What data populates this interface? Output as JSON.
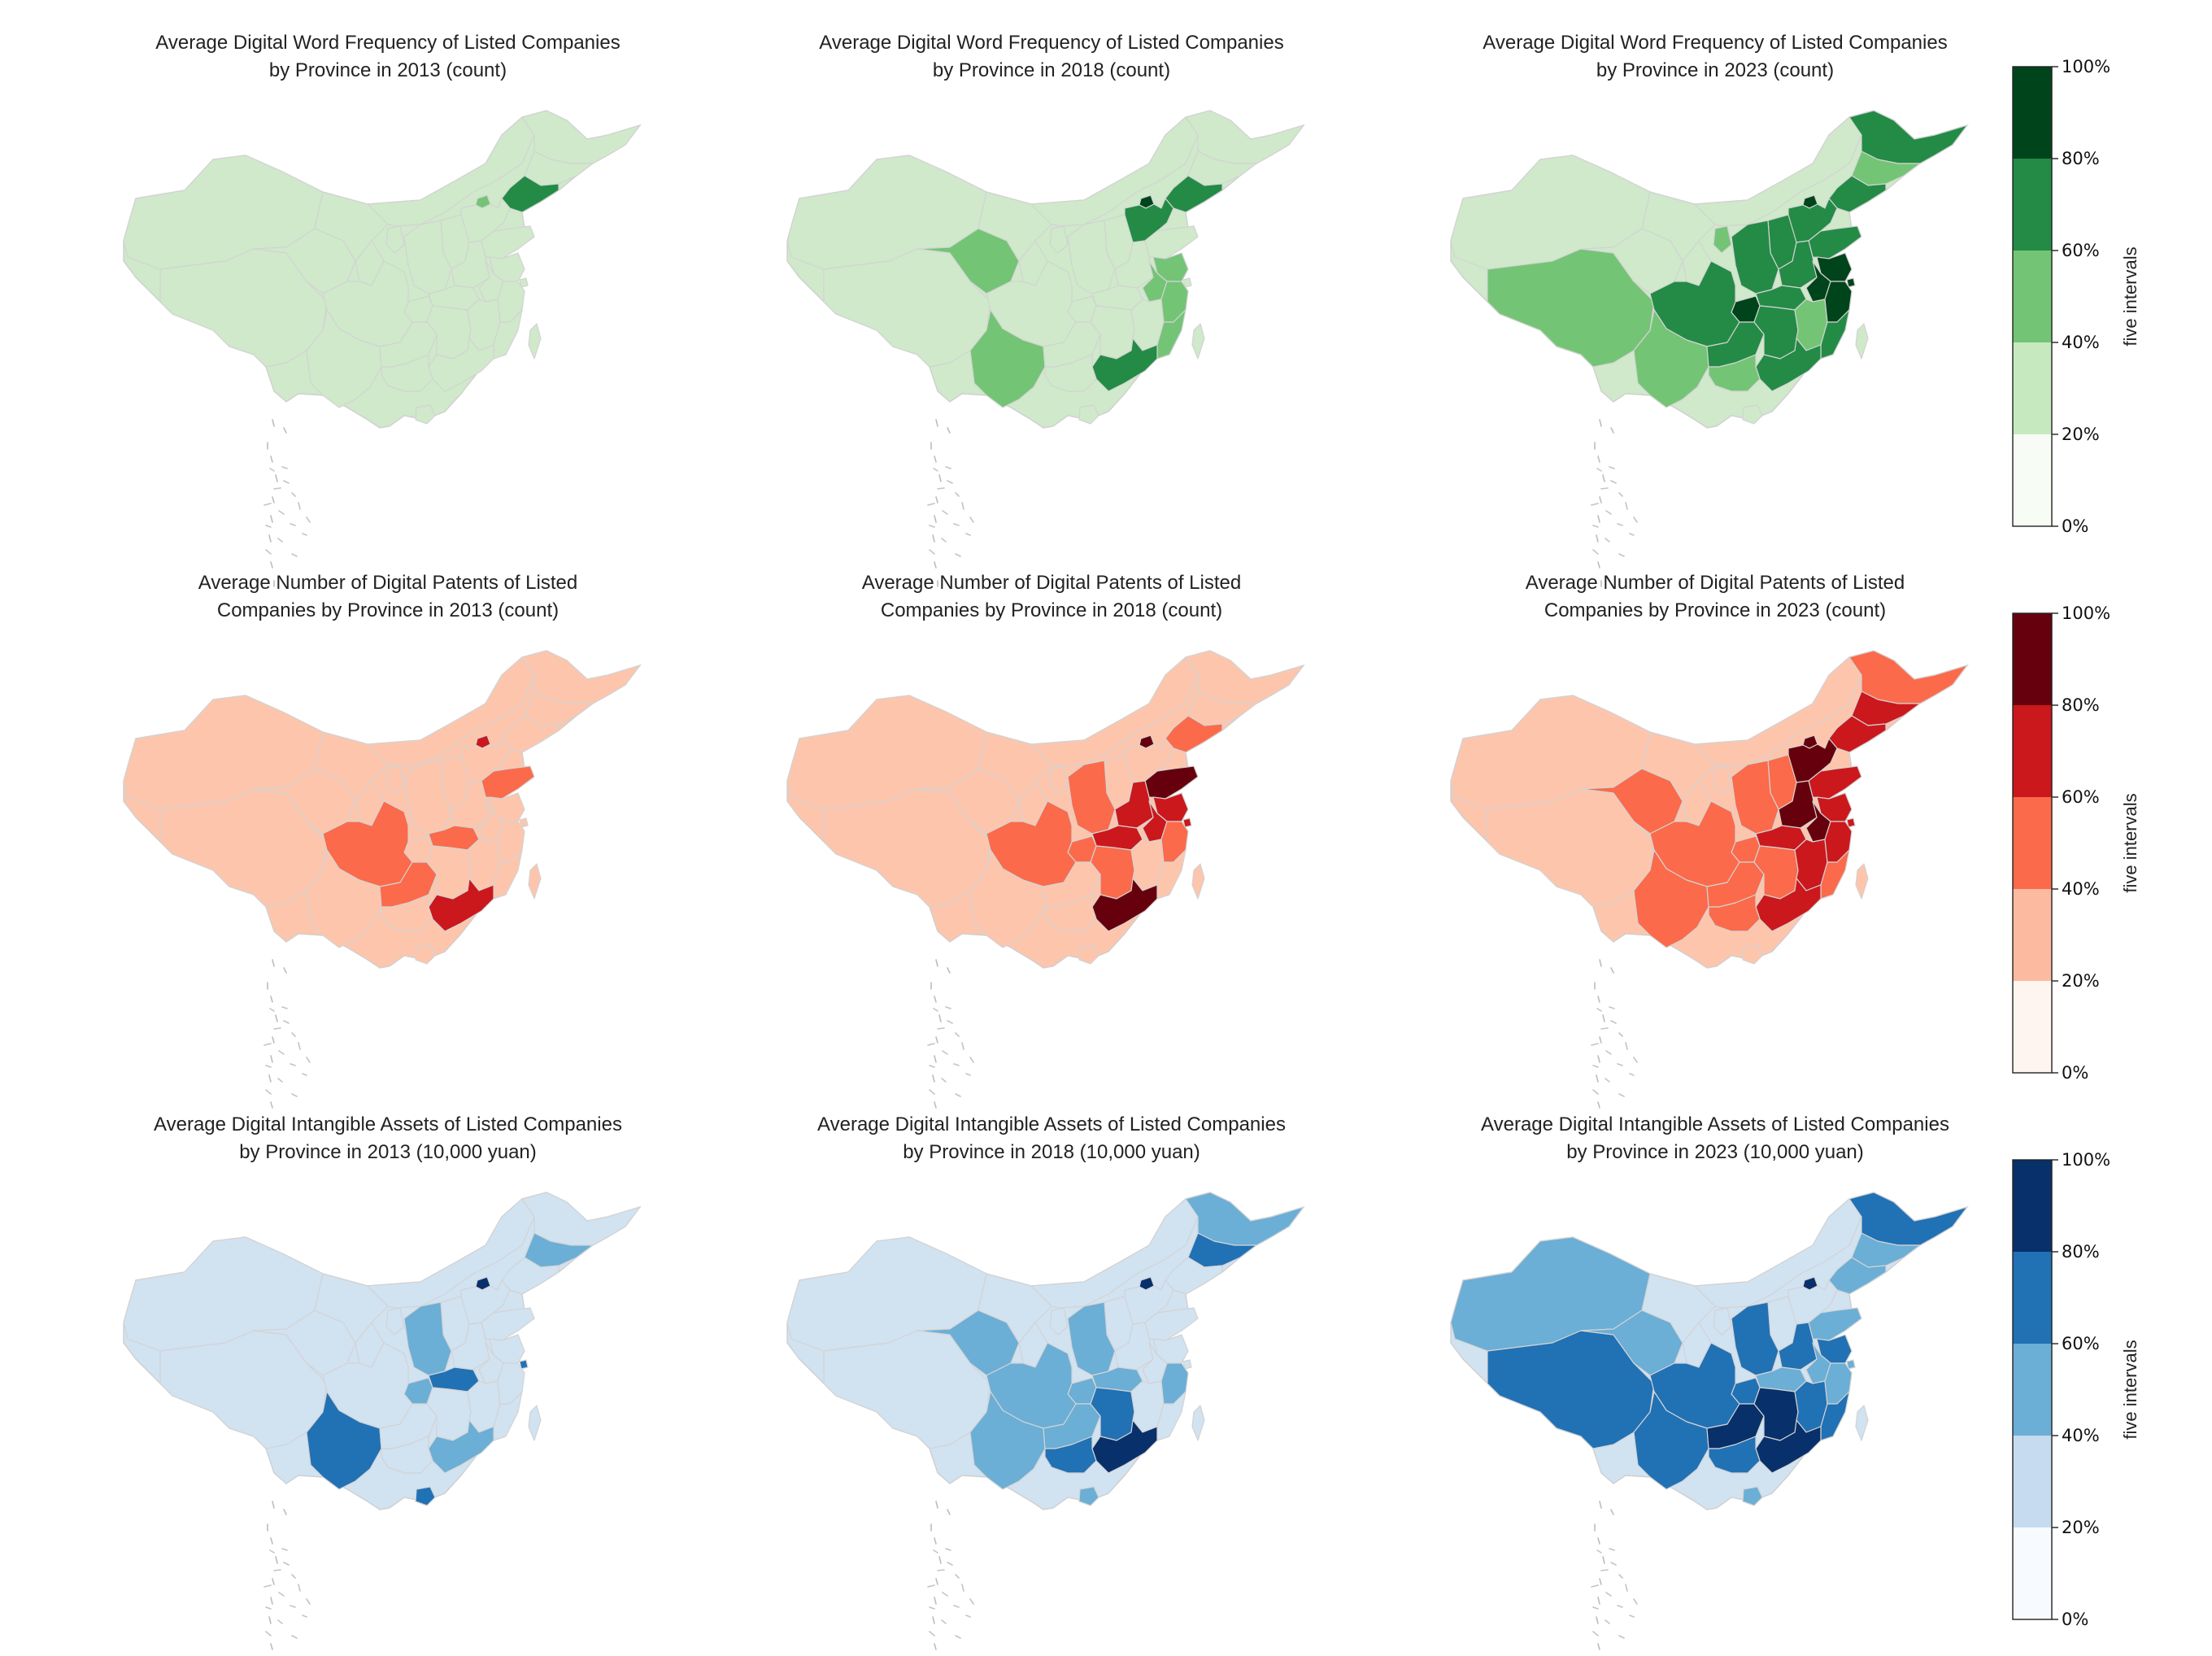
{
  "rows": [
    {
      "id": "word-frequency",
      "palette": [
        "#f7fcf5",
        "#c7e9c0",
        "#74c476",
        "#238b45",
        "#00441b"
      ],
      "base_fill": "#cfe9ca",
      "panels": [
        {
          "title": "Average Digital Word Frequency of Listed Companies\nby Province in 2013 (count)",
          "regions": {
            "xinjiang": 1,
            "tibet": 1,
            "qinghai": 1,
            "gansu": 1,
            "inner_mongolia": 1,
            "heilongjiang": 1,
            "jilin": 1,
            "liaoning": 3,
            "beijing": 2,
            "tianjin": 1,
            "hebei": 1,
            "shanxi": 1,
            "shaanxi": 1,
            "ningxia": 1,
            "shandong": 1,
            "henan": 1,
            "jiangsu": 1,
            "shanghai": 1,
            "anhui": 1,
            "hubei": 1,
            "sichuan": 1,
            "chongqing": 1,
            "yunnan": 1,
            "guizhou": 1,
            "hunan": 1,
            "jiangxi": 1,
            "zhejiang": 1,
            "fujian": 1,
            "guangdong": 1,
            "guangxi": 1,
            "hainan": 1,
            "taiwan": 1
          }
        },
        {
          "title": "Average Digital Word Frequency of Listed Companies\nby Province in 2018 (count)",
          "regions": {
            "xinjiang": 1,
            "tibet": 1,
            "qinghai": 2,
            "gansu": 1,
            "inner_mongolia": 1,
            "heilongjiang": 1,
            "jilin": 1,
            "liaoning": 3,
            "beijing": 4,
            "tianjin": 1,
            "hebei": 3,
            "shanxi": 1,
            "shaanxi": 1,
            "ningxia": 1,
            "shandong": 1,
            "henan": 1,
            "jiangsu": 2,
            "shanghai": 1,
            "anhui": 2,
            "hubei": 1,
            "sichuan": 1,
            "chongqing": 1,
            "yunnan": 2,
            "guizhou": 1,
            "hunan": 1,
            "jiangxi": 1,
            "zhejiang": 2,
            "fujian": 2,
            "guangdong": 3,
            "guangxi": 1,
            "hainan": 1,
            "taiwan": 1
          }
        },
        {
          "title": "Average Digital Word Frequency of Listed Companies\nby Province in 2023 (count)",
          "regions": {
            "xinjiang": 1,
            "tibet": 2,
            "qinghai": 1,
            "gansu": 1,
            "inner_mongolia": 1,
            "heilongjiang": 3,
            "jilin": 2,
            "liaoning": 3,
            "beijing": 4,
            "tianjin": 3,
            "hebei": 3,
            "shanxi": 3,
            "shaanxi": 3,
            "ningxia": 2,
            "shandong": 3,
            "henan": 3,
            "jiangsu": 4,
            "shanghai": 4,
            "anhui": 4,
            "hubei": 3,
            "sichuan": 3,
            "chongqing": 4,
            "yunnan": 2,
            "guizhou": 3,
            "hunan": 3,
            "jiangxi": 2,
            "zhejiang": 4,
            "fujian": 3,
            "guangdong": 3,
            "guangxi": 2,
            "hainan": 1,
            "taiwan": 1
          }
        }
      ],
      "colorbar": {
        "ticks": [
          "0%",
          "20%",
          "40%",
          "60%",
          "80%",
          "100%"
        ],
        "label": "five intervals"
      }
    },
    {
      "id": "digital-patents",
      "palette": [
        "#fff5f0",
        "#fcbba1",
        "#fb6a4a",
        "#cb181d",
        "#67000d"
      ],
      "base_fill": "#fdc5ac",
      "panels": [
        {
          "title": "Average Number of Digital Patents of Listed\nCompanies by Province in 2013 (count)",
          "regions": {
            "xinjiang": 1,
            "tibet": 1,
            "qinghai": 1,
            "gansu": 1,
            "inner_mongolia": 1,
            "heilongjiang": 1,
            "jilin": 1,
            "liaoning": 1,
            "beijing": 3,
            "tianjin": 1,
            "hebei": 1,
            "shanxi": 1,
            "shaanxi": 1,
            "ningxia": 1,
            "shandong": 2,
            "henan": 1,
            "jiangsu": 1,
            "shanghai": 1,
            "anhui": 1,
            "hubei": 2,
            "sichuan": 2,
            "chongqing": 1,
            "yunnan": 1,
            "guizhou": 2,
            "hunan": 1,
            "jiangxi": 1,
            "zhejiang": 1,
            "fujian": 1,
            "guangdong": 3,
            "guangxi": 1,
            "hainan": 1,
            "taiwan": 1
          }
        },
        {
          "title": "Average Number of Digital Patents of Listed\nCompanies by Province in 2018 (count)",
          "regions": {
            "xinjiang": 1,
            "tibet": 1,
            "qinghai": 1,
            "gansu": 1,
            "inner_mongolia": 1,
            "heilongjiang": 1,
            "jilin": 1,
            "liaoning": 2,
            "beijing": 4,
            "tianjin": 1,
            "hebei": 1,
            "shanxi": 1,
            "shaanxi": 2,
            "ningxia": 1,
            "shandong": 4,
            "henan": 3,
            "jiangsu": 3,
            "shanghai": 3,
            "anhui": 3,
            "hubei": 3,
            "sichuan": 2,
            "chongqing": 2,
            "yunnan": 1,
            "guizhou": 1,
            "hunan": 2,
            "jiangxi": 1,
            "zhejiang": 2,
            "fujian": 1,
            "guangdong": 4,
            "guangxi": 1,
            "hainan": 1,
            "taiwan": 1
          }
        },
        {
          "title": "Average Number of Digital Patents of Listed\nCompanies by Province in 2023 (count)",
          "regions": {
            "xinjiang": 1,
            "tibet": 1,
            "qinghai": 2,
            "gansu": 1,
            "inner_mongolia": 1,
            "heilongjiang": 2,
            "jilin": 3,
            "liaoning": 3,
            "beijing": 4,
            "tianjin": 4,
            "hebei": 4,
            "shanxi": 2,
            "shaanxi": 2,
            "ningxia": 1,
            "shandong": 3,
            "henan": 4,
            "jiangsu": 3,
            "shanghai": 3,
            "anhui": 4,
            "hubei": 3,
            "sichuan": 2,
            "chongqing": 2,
            "yunnan": 2,
            "guizhou": 2,
            "hunan": 2,
            "jiangxi": 3,
            "zhejiang": 3,
            "fujian": 2,
            "guangdong": 3,
            "guangxi": 2,
            "hainan": 1,
            "taiwan": 1
          }
        }
      ],
      "colorbar": {
        "ticks": [
          "0%",
          "20%",
          "40%",
          "60%",
          "80%",
          "100%"
        ],
        "label": "five intervals"
      }
    },
    {
      "id": "intangible-assets",
      "palette": [
        "#f7fbff",
        "#c6dbef",
        "#6baed6",
        "#2171b5",
        "#08306b"
      ],
      "base_fill": "#d1e2f1",
      "panels": [
        {
          "title": "Average Digital Intangible Assets of Listed Companies\nby Province in 2013 (10,000 yuan)",
          "regions": {
            "xinjiang": 1,
            "tibet": 1,
            "qinghai": 1,
            "gansu": 1,
            "inner_mongolia": 1,
            "heilongjiang": 1,
            "jilin": 2,
            "liaoning": 1,
            "beijing": 4,
            "tianjin": 1,
            "hebei": 1,
            "shanxi": 1,
            "shaanxi": 2,
            "ningxia": 1,
            "shandong": 1,
            "henan": 1,
            "jiangsu": 1,
            "shanghai": 3,
            "anhui": 1,
            "hubei": 3,
            "sichuan": 1,
            "chongqing": 2,
            "yunnan": 3,
            "guizhou": 1,
            "hunan": 1,
            "jiangxi": 1,
            "zhejiang": 1,
            "fujian": 1,
            "guangdong": 2,
            "guangxi": 1,
            "hainan": 3,
            "taiwan": 1
          }
        },
        {
          "title": "Average Digital Intangible Assets of Listed Companies\nby Province in 2018 (10,000 yuan)",
          "regions": {
            "xinjiang": 1,
            "tibet": 1,
            "qinghai": 2,
            "gansu": 1,
            "inner_mongolia": 1,
            "heilongjiang": 2,
            "jilin": 3,
            "liaoning": 1,
            "beijing": 4,
            "tianjin": 1,
            "hebei": 1,
            "shanxi": 1,
            "shaanxi": 2,
            "ningxia": 1,
            "shandong": 1,
            "henan": 1,
            "jiangsu": 1,
            "shanghai": 1,
            "anhui": 1,
            "hubei": 2,
            "sichuan": 2,
            "chongqing": 2,
            "yunnan": 2,
            "guizhou": 2,
            "hunan": 3,
            "jiangxi": 1,
            "zhejiang": 2,
            "fujian": 1,
            "guangdong": 4,
            "guangxi": 3,
            "hainan": 2,
            "taiwan": 1
          }
        },
        {
          "title": "Average Digital Intangible Assets of Listed Companies\nby Province in 2023 (10,000 yuan)",
          "regions": {
            "xinjiang": 2,
            "tibet": 3,
            "qinghai": 2,
            "gansu": 1,
            "inner_mongolia": 1,
            "heilongjiang": 3,
            "jilin": 2,
            "liaoning": 2,
            "beijing": 4,
            "tianjin": 1,
            "hebei": 1,
            "shanxi": 1,
            "shaanxi": 3,
            "ningxia": 1,
            "shandong": 2,
            "henan": 3,
            "jiangsu": 3,
            "shanghai": 2,
            "anhui": 2,
            "hubei": 2,
            "sichuan": 3,
            "chongqing": 3,
            "yunnan": 3,
            "guizhou": 4,
            "hunan": 4,
            "jiangxi": 3,
            "zhejiang": 2,
            "fujian": 3,
            "guangdong": 4,
            "guangxi": 3,
            "hainan": 2,
            "taiwan": 1
          }
        }
      ],
      "colorbar": {
        "ticks": [
          "0%",
          "20%",
          "40%",
          "60%",
          "80%",
          "100%"
        ],
        "label": "five intervals"
      }
    }
  ]
}
